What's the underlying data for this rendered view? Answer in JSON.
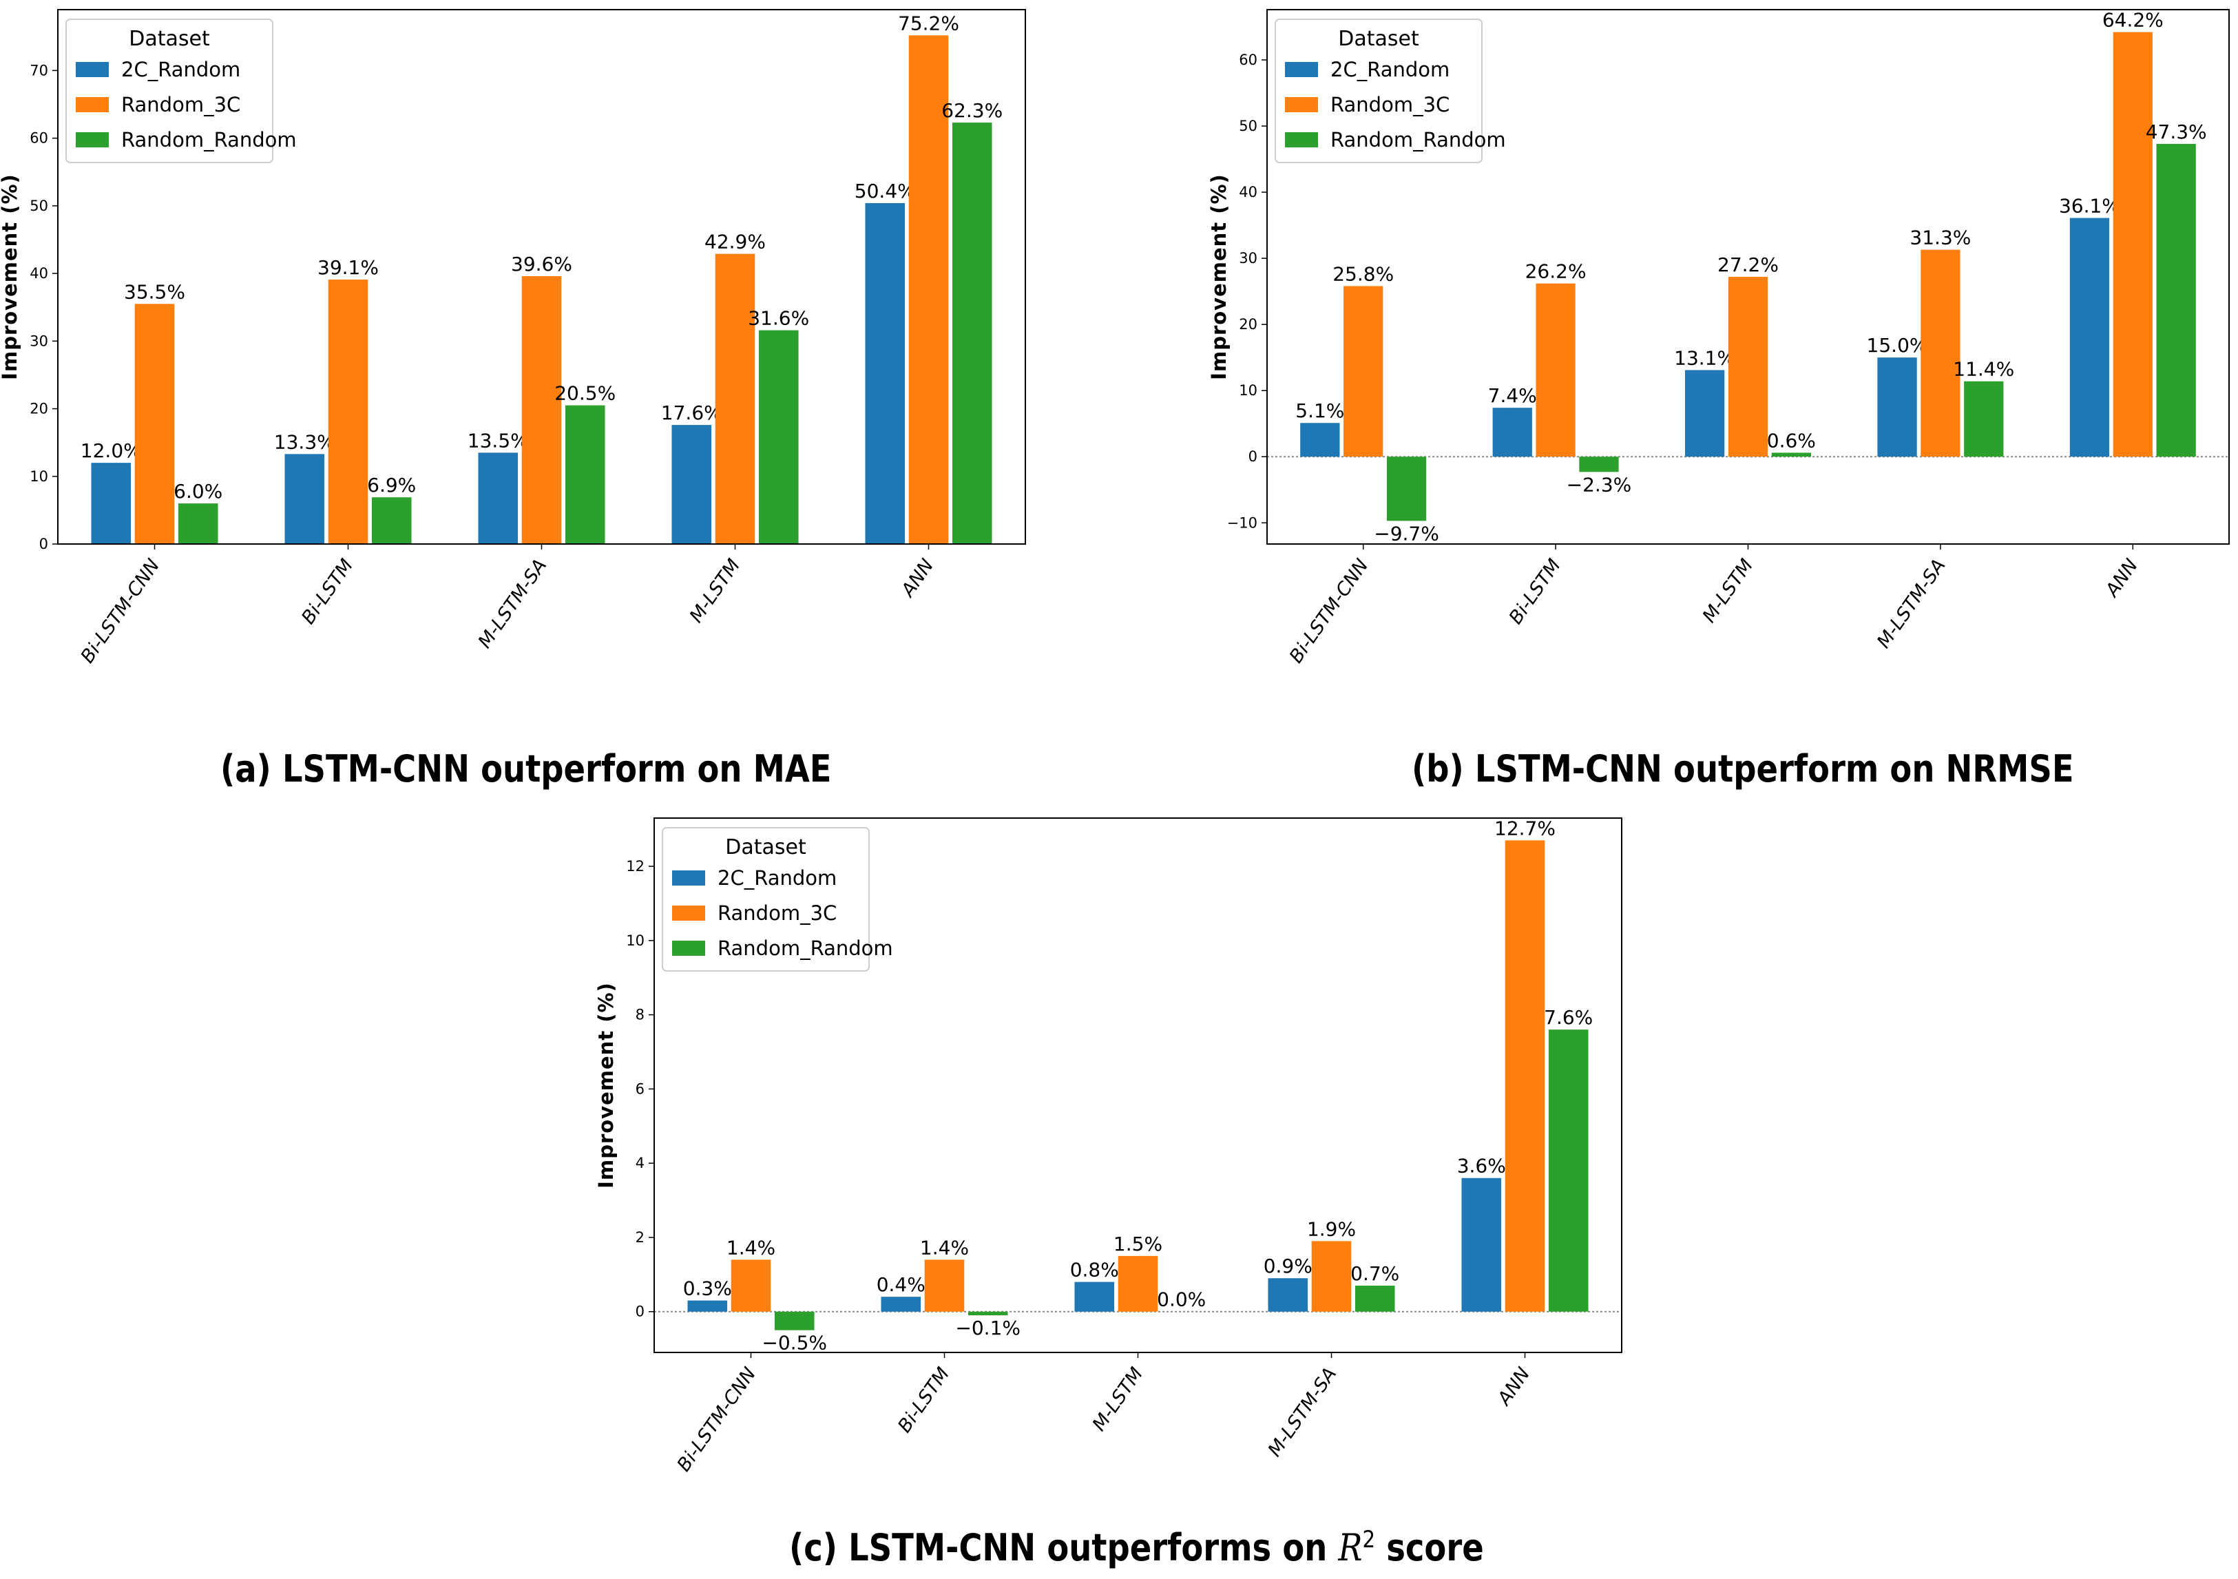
{
  "colors": {
    "2C_Random": "#1f77b4",
    "Random_3C": "#ff7f0e",
    "Random_Random": "#2ca02c"
  },
  "chart_data": [
    {
      "id": "a",
      "type": "bar",
      "caption": "(a) LSTM-CNN outperform on MAE",
      "ylabel": "Improvement (%)",
      "ylim": [
        0,
        79
      ],
      "yticks": [
        0,
        10,
        20,
        30,
        40,
        50,
        60,
        70
      ],
      "categories": [
        "Bi-LSTM-CNN",
        "Bi-LSTM",
        "M-LSTM-SA",
        "M-LSTM",
        "ANN"
      ],
      "legend": {
        "title": "Dataset",
        "position": "top-left"
      },
      "zero_line": false,
      "series": [
        {
          "name": "2C_Random",
          "values": [
            12.0,
            13.3,
            13.5,
            17.6,
            50.4
          ],
          "labels": [
            "12.0%",
            "13.3%",
            "13.5%",
            "17.6%",
            "50.4%"
          ]
        },
        {
          "name": "Random_3C",
          "values": [
            35.5,
            39.1,
            39.6,
            42.9,
            75.2
          ],
          "labels": [
            "35.5%",
            "39.1%",
            "39.6%",
            "42.9%",
            "75.2%"
          ]
        },
        {
          "name": "Random_Random",
          "values": [
            6.0,
            6.9,
            20.5,
            31.6,
            62.3
          ],
          "labels": [
            "6.0%",
            "6.9%",
            "20.5%",
            "31.6%",
            "62.3%"
          ]
        }
      ]
    },
    {
      "id": "b",
      "type": "bar",
      "caption": "(b) LSTM-CNN outperform on NRMSE",
      "ylabel": "Improvement (%)",
      "ylim": [
        -13.2,
        67.6
      ],
      "yticks": [
        -10,
        0,
        10,
        20,
        30,
        40,
        50,
        60
      ],
      "tick_labels": [
        "−10",
        "0",
        "10",
        "20",
        "30",
        "40",
        "50",
        "60"
      ],
      "categories": [
        "Bi-LSTM-CNN",
        "Bi-LSTM",
        "M-LSTM",
        "M-LSTM-SA",
        "ANN"
      ],
      "legend": {
        "title": "Dataset",
        "position": "top-left"
      },
      "zero_line": true,
      "series": [
        {
          "name": "2C_Random",
          "values": [
            5.1,
            7.4,
            13.1,
            15.0,
            36.1
          ],
          "labels": [
            "5.1%",
            "7.4%",
            "13.1%",
            "15.0%",
            "36.1%"
          ]
        },
        {
          "name": "Random_3C",
          "values": [
            25.8,
            26.2,
            27.2,
            31.3,
            64.2
          ],
          "labels": [
            "25.8%",
            "26.2%",
            "27.2%",
            "31.3%",
            "64.2%"
          ]
        },
        {
          "name": "Random_Random",
          "values": [
            -9.7,
            -2.3,
            0.6,
            11.4,
            47.3
          ],
          "labels": [
            "−9.7%",
            "−2.3%",
            "0.6%",
            "11.4%",
            "47.3%"
          ]
        }
      ]
    },
    {
      "id": "c",
      "type": "bar",
      "caption_prefix": "(c) LSTM-CNN outperforms on ",
      "caption_symbol": "R",
      "caption_sup": "2",
      "caption_suffix": " score",
      "ylabel": "Improvement (%)",
      "ylim": [
        -1.1,
        13.3
      ],
      "yticks": [
        0,
        2,
        4,
        6,
        8,
        10,
        12
      ],
      "categories": [
        "Bi-LSTM-CNN",
        "Bi-LSTM",
        "M-LSTM",
        "M-LSTM-SA",
        "ANN"
      ],
      "legend": {
        "title": "Dataset",
        "position": "top-left"
      },
      "zero_line": true,
      "series": [
        {
          "name": "2C_Random",
          "values": [
            0.3,
            0.4,
            0.8,
            0.9,
            3.6
          ],
          "labels": [
            "0.3%",
            "0.4%",
            "0.8%",
            "0.9%",
            "3.6%"
          ]
        },
        {
          "name": "Random_3C",
          "values": [
            1.4,
            1.4,
            1.5,
            1.9,
            12.7
          ],
          "labels": [
            "1.4%",
            "1.4%",
            "1.5%",
            "1.9%",
            "12.7%"
          ]
        },
        {
          "name": "Random_Random",
          "values": [
            -0.5,
            -0.1,
            0.0,
            0.7,
            7.6
          ],
          "labels": [
            "−0.5%",
            "−0.1%",
            "0.0%",
            "0.7%",
            "7.6%"
          ]
        }
      ]
    }
  ]
}
